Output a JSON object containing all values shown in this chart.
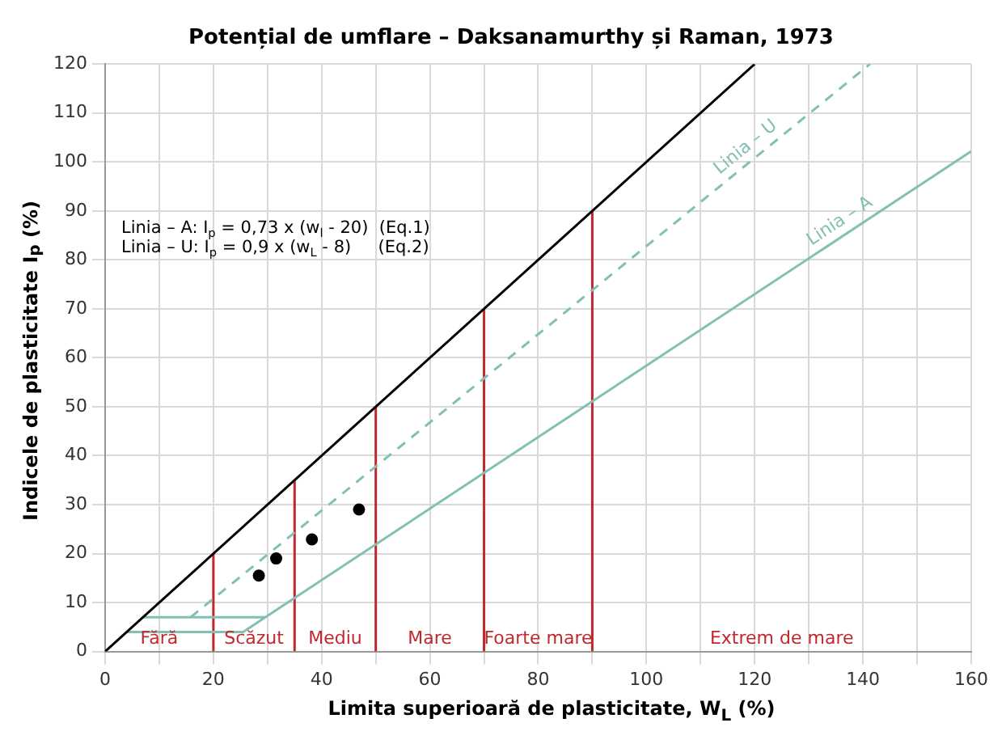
{
  "chart_data": {
    "type": "line",
    "title": "Potențial de umflare – Daksanamurthy și Raman, 1973",
    "xlabel": "Limita superioară de plasticitate, W$_{L}$ (%)",
    "ylabel": "Indicele de plasticitate I$_{p}$ (%)",
    "xlim": [
      0,
      160
    ],
    "xticks": [
      0,
      {
        "value": 10,
        "label": null
      },
      20,
      {
        "value": 30,
        "label": null
      },
      40,
      {
        "value": 50,
        "label": null
      },
      60,
      {
        "value": 70,
        "label": null
      },
      80,
      {
        "value": 90,
        "label": null
      },
      100,
      {
        "value": 110,
        "label": null
      },
      120,
      {
        "value": 130,
        "label": null
      },
      140,
      {
        "value": 150,
        "label": null
      },
      160
    ],
    "ylim": [
      0,
      120
    ],
    "yticks": [
      0,
      10,
      20,
      30,
      40,
      50,
      60,
      70,
      80,
      90,
      100,
      110,
      120
    ],
    "grid": true,
    "series": [
      {
        "color": "#000000",
        "x": [
          0,
          120
        ],
        "values": [
          0,
          120
        ]
      },
      {
        "color": "#82c0b4",
        "x": [
          15.8,
          141.3
        ],
        "values": [
          7,
          120
        ],
        "line_style": "dashed"
      },
      {
        "color": "#82c0b4",
        "x": [
          4,
          25.5,
          160
        ],
        "values": [
          4,
          4,
          102.2
        ]
      },
      {
        "color": "#82c0b4",
        "x": [
          7,
          29.6
        ],
        "values": [
          7,
          7
        ]
      },
      {
        "color": "#c0282e",
        "x": [
          20,
          20
        ],
        "values": [
          0,
          20
        ]
      },
      {
        "color": "#c0282e",
        "x": [
          35,
          35
        ],
        "values": [
          0,
          35
        ]
      },
      {
        "color": "#c0282e",
        "x": [
          50,
          50
        ],
        "values": [
          0,
          50
        ]
      },
      {
        "color": "#c0282e",
        "x": [
          70,
          70
        ],
        "values": [
          0,
          70
        ]
      },
      {
        "color": "#c0282e",
        "x": [
          90,
          90
        ],
        "values": [
          0,
          90
        ]
      },
      {
        "type": "scatter",
        "marker": "circle",
        "color": "#000000",
        "x": [
          28.4,
          31.6,
          38.2,
          46.9
        ],
        "values": [
          15.5,
          19,
          22.9,
          29
        ]
      }
    ],
    "annotations": [
      "Linia – A: I$_{p}$ = 0,73 x (w$_{l}$ - 20)  (Eq.1)",
      "Linia – U: I$_{p}$ = 0,9 x (w$_{L}$ - 8)     (Eq.2)",
      "Linia – U",
      "Linia – A",
      "Fără",
      "Scăzut",
      "Mediu",
      "Mare",
      "Foarte mare",
      "Extrem de mare"
    ]
  }
}
